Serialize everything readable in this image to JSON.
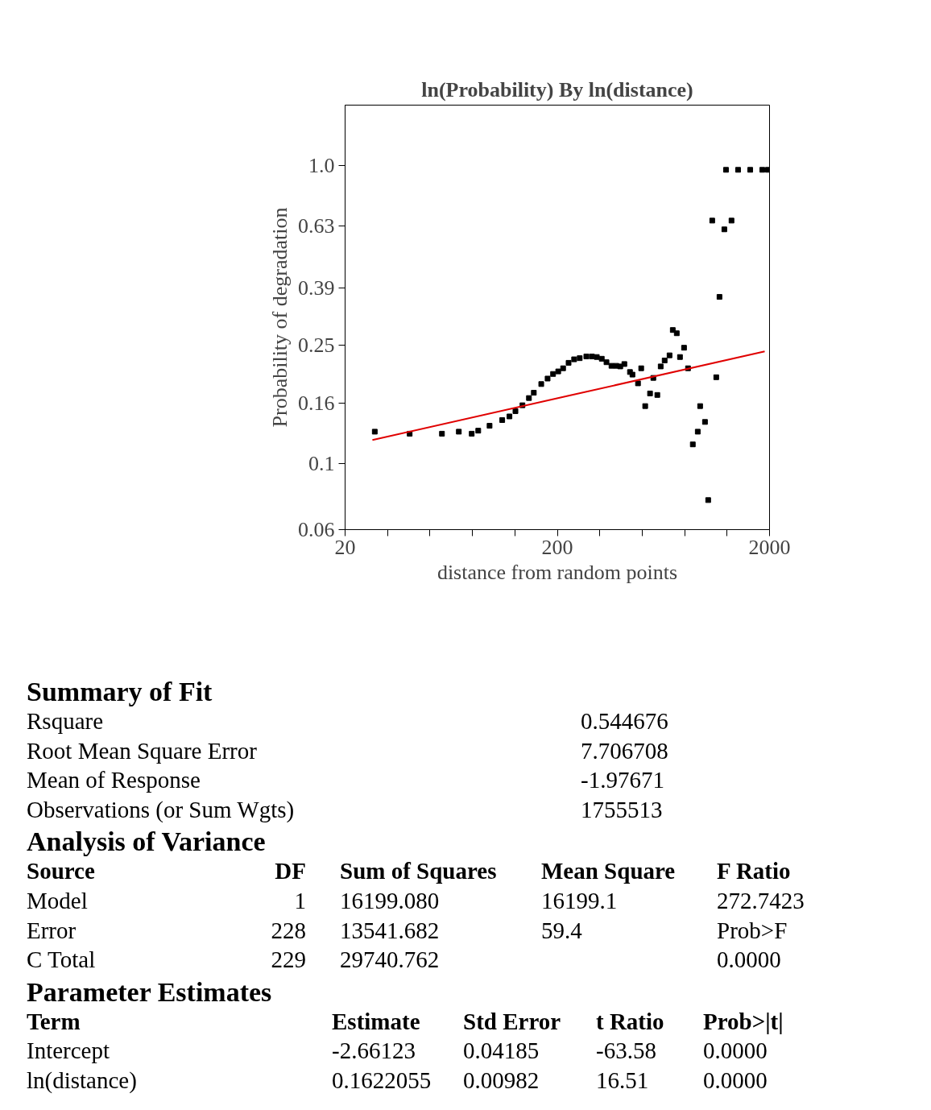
{
  "chart_data": {
    "type": "scatter",
    "title": "ln(Probability) By ln(distance)",
    "xlabel": "distance from random points",
    "ylabel": "Probability of degradation",
    "log": "xy",
    "grid": false,
    "marker": "square",
    "xlim": [
      20,
      2000
    ],
    "ylim": [
      0.06,
      1.6
    ],
    "xticks": [
      20,
      {
        "value": 31.7,
        "label": null
      },
      {
        "value": 50.24,
        "label": null
      },
      {
        "value": 79.62,
        "label": null
      },
      {
        "value": 126.2,
        "label": null
      },
      200,
      {
        "value": 317,
        "label": null
      },
      {
        "value": 502.4,
        "label": null
      },
      {
        "value": 796.2,
        "label": null
      },
      {
        "value": 1262,
        "label": null
      },
      2000
    ],
    "yticks": [
      0.06,
      0.1,
      0.16,
      0.25,
      0.39,
      0.63,
      {
        "value": 1,
        "label": "1.0"
      }
    ],
    "series": [
      {
        "color": "#000000",
        "x": [
          27.6,
          40.3,
          57.2,
          68.7,
          79,
          84.8,
          95.9,
          110,
          119,
          127,
          137,
          147,
          155,
          168,
          180,
          191,
          202,
          213,
          226,
          240,
          255,
          274,
          291,
          307,
          324,
          341,
          360,
          379,
          396,
          414,
          440,
          452,
          480,
          497,
          519,
          547,
          567,
          592,
          614,
          641,
          676,
          700,
          731,
          757,
          791,
          826,
          870,
          918,
          942,
          993,
          1028,
          1074,
          1122,
          1162,
          1225,
          1324,
          1247,
          1422,
          1622,
          1849,
          1965
        ],
        "values": [
          0.128,
          0.126,
          0.126,
          0.128,
          0.126,
          0.129,
          0.134,
          0.14,
          0.144,
          0.15,
          0.157,
          0.166,
          0.173,
          0.185,
          0.193,
          0.2,
          0.204,
          0.209,
          0.218,
          0.224,
          0.226,
          0.229,
          0.229,
          0.228,
          0.225,
          0.219,
          0.213,
          0.213,
          0.212,
          0.216,
          0.203,
          0.199,
          0.186,
          0.209,
          0.156,
          0.172,
          0.194,
          0.17,
          0.212,
          0.222,
          0.231,
          0.281,
          0.274,
          0.228,
          0.245,
          0.209,
          0.116,
          0.128,
          0.156,
          0.138,
          0.0754,
          0.655,
          0.195,
          0.363,
          0.612,
          0.655,
          0.97,
          0.97,
          0.97,
          0.97,
          0.97
        ]
      },
      {
        "type": "line",
        "marker": "none",
        "color": "#e00000",
        "x": [
          26.9,
          226,
          1898
        ],
        "values": [
          0.12,
          0.169,
          0.238
        ]
      }
    ],
    "annotations": [
      "Summary of Fit",
      "Rsquare\t0.544676",
      "Root Mean Square Error\t7.706708",
      "Mean of Response\t-1.97671",
      "Observations (or Sum Wgts)\t1755513",
      "Analysis of Variance",
      "Source\tDF\tSum of Squares\tMean Square\tF Ratio",
      "Model\t1\t16199.080\t16199.1\t272.7423",
      "Error\t228\t13541.682\t59.4\tProb>F",
      "C Total\t229\t29740.762\t\t0.0000",
      "Parameter Estimates",
      "Term\tEstimate\tStd Error\tt Ratio\tProb>|t|",
      "Intercept\t-2.66123\t0.04185\t-63.58\t0.0000",
      "ln(distance)\t0.1622055\t0.00982\t16.51\t0.0000"
    ]
  }
}
